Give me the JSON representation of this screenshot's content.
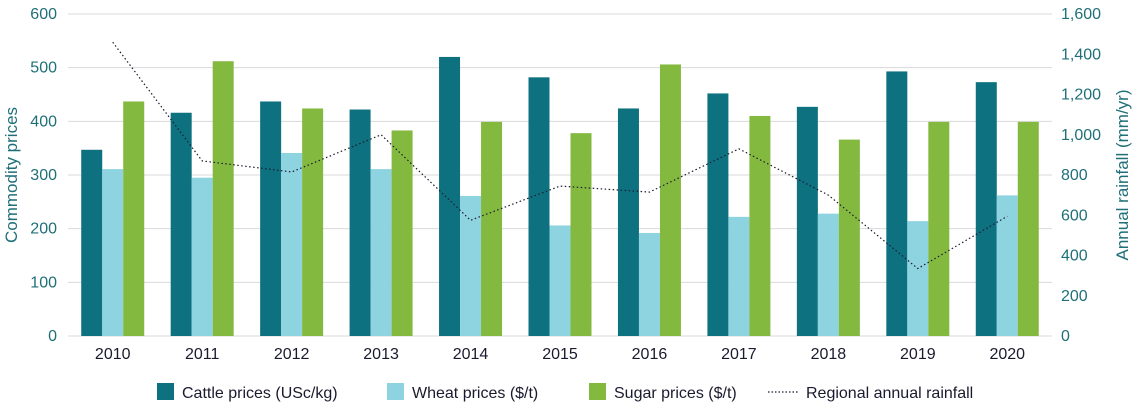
{
  "chart_data": {
    "type": "bar",
    "categories": [
      "2010",
      "2011",
      "2012",
      "2013",
      "2014",
      "2015",
      "2016",
      "2017",
      "2018",
      "2019",
      "2020"
    ],
    "series": [
      {
        "name": "Cattle prices (USc/kg)",
        "axis": "left",
        "type": "bar",
        "color": "#0e7180",
        "values": [
          347,
          416,
          437,
          422,
          520,
          482,
          424,
          452,
          427,
          493,
          473
        ]
      },
      {
        "name": "Wheat prices ($/t)",
        "axis": "left",
        "type": "bar",
        "color": "#8ed3e0",
        "values": [
          311,
          295,
          341,
          311,
          261,
          206,
          192,
          222,
          228,
          214,
          262
        ]
      },
      {
        "name": "Sugar prices ($/t)",
        "axis": "left",
        "type": "bar",
        "color": "#84b940",
        "values": [
          437,
          512,
          424,
          383,
          399,
          378,
          506,
          410,
          366,
          399,
          399
        ]
      },
      {
        "name": "Regional annual rainfall",
        "axis": "right",
        "type": "line",
        "style": "dotted",
        "color": "#1a1a2e",
        "values": [
          1460,
          870,
          815,
          1000,
          575,
          745,
          715,
          930,
          700,
          335,
          595
        ]
      }
    ],
    "ylabel": "Commodity prices",
    "ylim": [
      0,
      600
    ],
    "yticks": [
      "0",
      "100",
      "200",
      "300",
      "400",
      "500",
      "600"
    ],
    "y2label": "Annual rainfall  (mm/yr)",
    "y2lim": [
      0,
      1600
    ],
    "y2ticks": [
      "0",
      "200",
      "400",
      "600",
      "800",
      "1,000",
      "1,200",
      "1,400",
      "1,600"
    ],
    "grid": "horizontal",
    "legend_position": "bottom"
  }
}
